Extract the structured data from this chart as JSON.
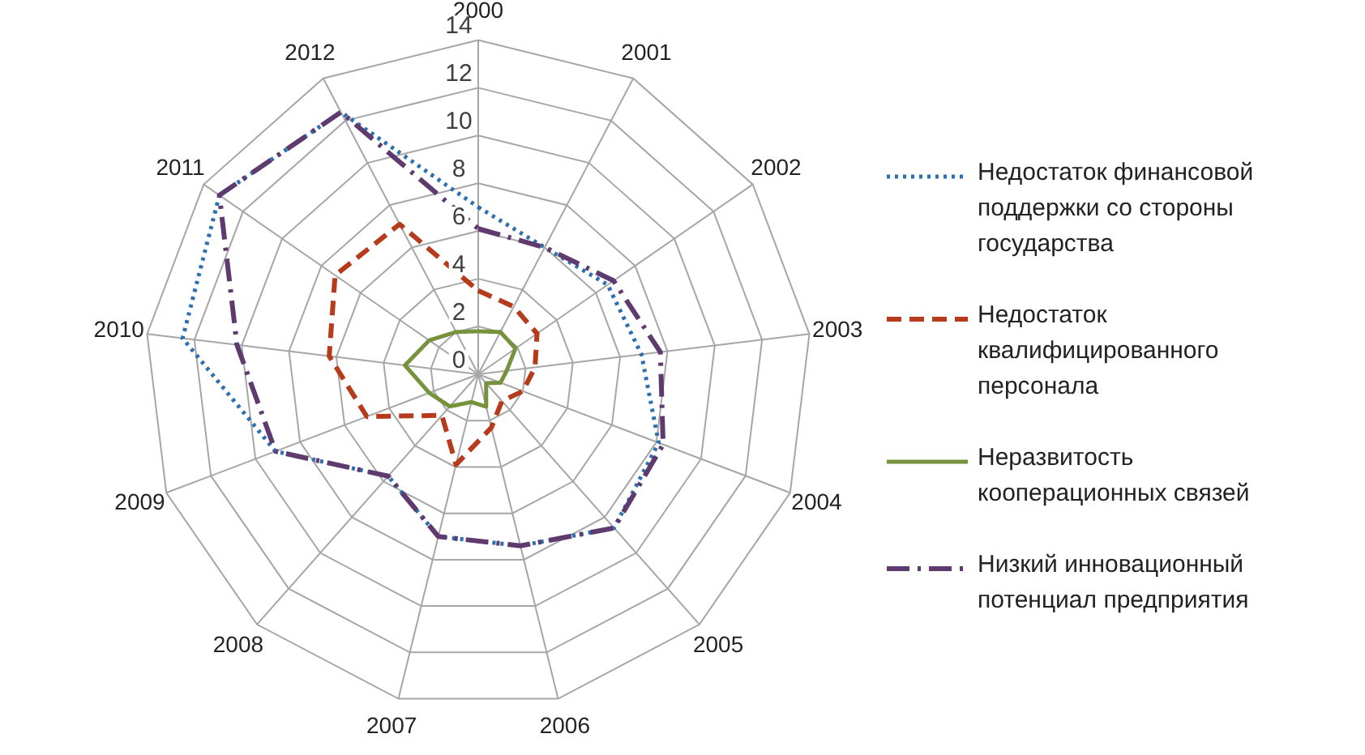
{
  "chart_data": {
    "type": "radar",
    "categories": [
      "2000",
      "2001",
      "2002",
      "2003",
      "2004",
      "2005",
      "2006",
      "2007",
      "2008",
      "2009",
      "2010",
      "2011",
      "2012"
    ],
    "ylim": [
      0,
      14
    ],
    "yticks": [
      0,
      2,
      4,
      6,
      8,
      10,
      12,
      14
    ],
    "grid": true,
    "legend": "right",
    "series": [
      {
        "name": "Недостаток финансовой поддержки со стороны государства",
        "color": "#2e6fb0",
        "line_style": "dotted",
        "values": [
          7.0,
          6.0,
          6.6,
          6.9,
          8.1,
          8.6,
          7.4,
          7.0,
          5.7,
          9.1,
          12.5,
          13.2,
          12.4
        ]
      },
      {
        "name": "Недостаток квалифицированного персонала",
        "color": "#b63a1c",
        "line_style": "dashed",
        "values": [
          3.5,
          3.2,
          3.0,
          2.4,
          2.0,
          1.5,
          2.3,
          3.9,
          2.3,
          5.0,
          6.3,
          7.3,
          7.1
        ]
      },
      {
        "name": "Неразвитость кооперационных связей",
        "color": "#76923c",
        "line_style": "solid",
        "values": [
          1.8,
          2.0,
          1.9,
          1.2,
          1.0,
          0.5,
          1.4,
          1.2,
          1.8,
          2.2,
          3.1,
          2.5,
          2.0
        ]
      },
      {
        "name": "Низкий инновационный потенциал предприятия",
        "color": "#5f3a6e",
        "line_style": "dashdot",
        "values": [
          6.1,
          6.0,
          6.9,
          7.7,
          8.3,
          8.6,
          7.4,
          7.0,
          5.7,
          9.1,
          10.2,
          13.2,
          12.4
        ]
      }
    ]
  }
}
